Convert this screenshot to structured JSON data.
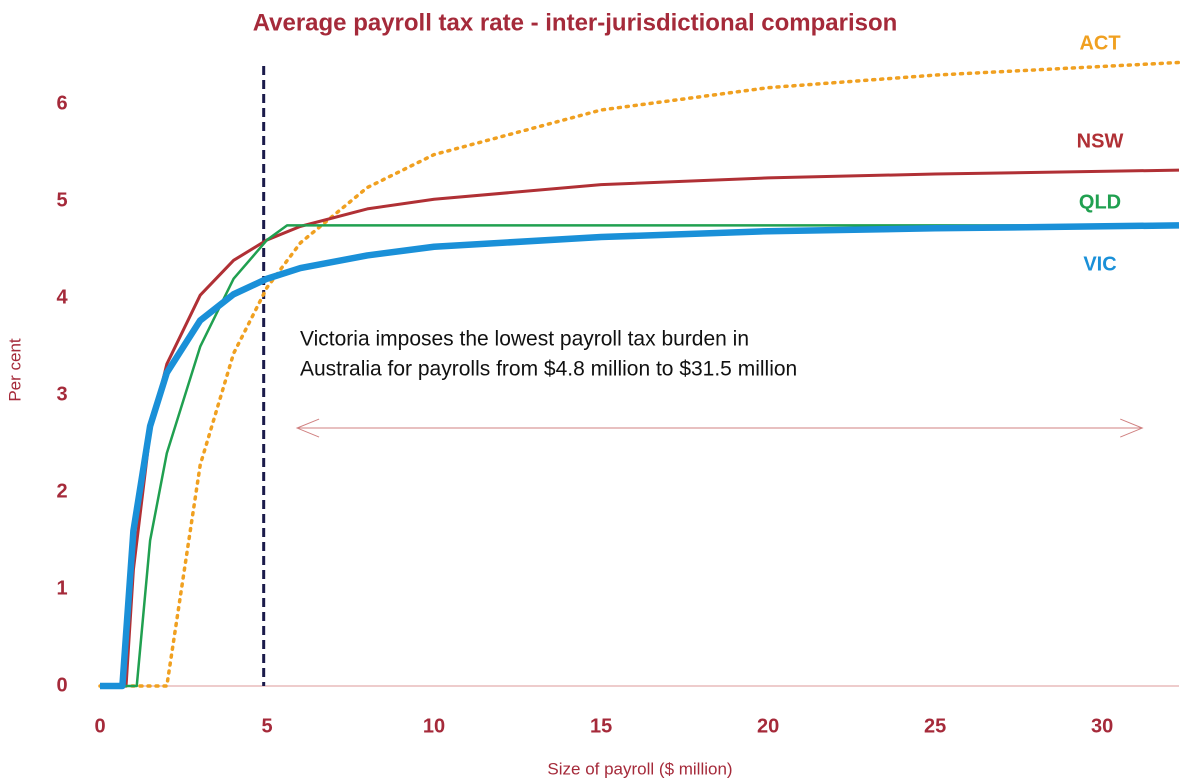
{
  "chart_data": {
    "type": "line",
    "title": "Average payroll tax rate - inter-jurisdictional comparison",
    "x_label": "Size of payroll ($ million)",
    "y_label": "Per cent",
    "xlim": [
      0,
      32.3
    ],
    "ylim": [
      0,
      6.6
    ],
    "xticks": [
      0,
      5,
      10,
      15,
      20,
      25,
      30
    ],
    "yticks": [
      0,
      1,
      2,
      3,
      4,
      5,
      6
    ],
    "grid": false,
    "series": [
      {
        "name": "ACT",
        "color": "#f0a020",
        "style": "dotted",
        "x": [
          0,
          2,
          3,
          4,
          5,
          6,
          8,
          10,
          15,
          20,
          25,
          32.3
        ],
        "values": [
          0,
          0,
          2.28,
          3.43,
          4.11,
          4.57,
          5.14,
          5.48,
          5.94,
          6.17,
          6.3,
          6.43
        ]
      },
      {
        "name": "NSW",
        "color": "#b03035",
        "style": "solid",
        "x": [
          0,
          0.78,
          1,
          1.5,
          2,
          3,
          4,
          5,
          6,
          8,
          10,
          15,
          20,
          25,
          32.3
        ],
        "values": [
          0,
          0,
          1.2,
          2.62,
          3.32,
          4.03,
          4.39,
          4.6,
          4.74,
          4.92,
          5.02,
          5.17,
          5.24,
          5.28,
          5.32
        ]
      },
      {
        "name": "QLD",
        "color": "#20a050",
        "style": "solid",
        "x": [
          0,
          1.1,
          1.5,
          2,
          3,
          4,
          5,
          5.6,
          32.3
        ],
        "values": [
          0,
          0,
          1.5,
          2.4,
          3.5,
          4.2,
          4.6,
          4.75,
          4.75
        ]
      },
      {
        "name": "VIC",
        "color": "#1a90d8",
        "style": "thick",
        "x": [
          0,
          0.67,
          1,
          1.5,
          2,
          3,
          4,
          5,
          6,
          8,
          10,
          15,
          20,
          25,
          32.3
        ],
        "values": [
          0,
          0,
          1.6,
          2.68,
          3.23,
          3.77,
          4.04,
          4.2,
          4.31,
          4.44,
          4.53,
          4.63,
          4.69,
          4.72,
          4.75
        ]
      }
    ],
    "vline": 4.9,
    "arrow": {
      "x": [
        5.9,
        31.2
      ],
      "y": 2.66
    },
    "annotation": [
      "Victoria imposes the lowest payroll tax burden in",
      "Australia for payrolls from $4.8 million to $31.5 million"
    ]
  }
}
